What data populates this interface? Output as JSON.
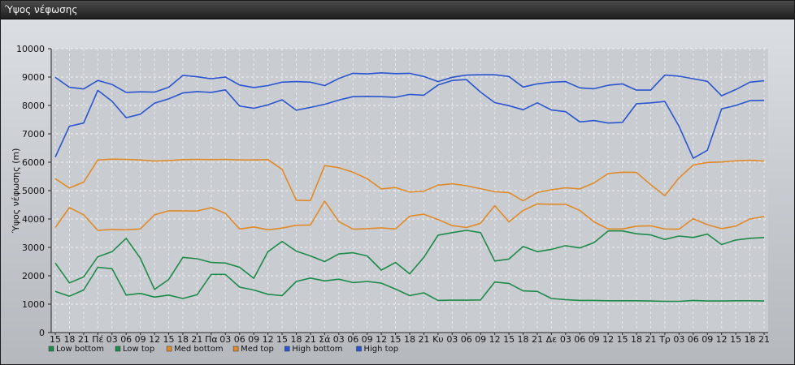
{
  "window": {
    "title": "Ύψος νέφωσης"
  },
  "chart_data": {
    "type": "line",
    "title": "",
    "ylabel": "Ύψος νέφωσης (m)",
    "xlabel": "",
    "ylim": [
      0,
      10000
    ],
    "yticks": [
      0,
      1000,
      2000,
      3000,
      4000,
      5000,
      6000,
      7000,
      8000,
      9000,
      10000
    ],
    "grid": true,
    "legend_position": "bottom-left",
    "categories": [
      "15",
      "18",
      "21",
      "Πέ",
      "03",
      "06",
      "09",
      "12",
      "15",
      "18",
      "21",
      "Πα",
      "03",
      "06",
      "09",
      "12",
      "15",
      "18",
      "21",
      "Σά",
      "03",
      "06",
      "09",
      "12",
      "15",
      "18",
      "21",
      "Κυ",
      "03",
      "06",
      "09",
      "12",
      "15",
      "18",
      "21",
      "Δε",
      "03",
      "06",
      "09",
      "12",
      "15",
      "18",
      "21",
      "Τρ",
      "03",
      "06",
      "09",
      "12",
      "15",
      "18",
      "21"
    ],
    "series": [
      {
        "name": "Low bottom",
        "color": "#1e8a4a",
        "values": [
          1450,
          1280,
          1500,
          2300,
          2250,
          1320,
          1380,
          1250,
          1320,
          1200,
          1330,
          2050,
          2050,
          1600,
          1500,
          1350,
          1300,
          1800,
          1920,
          1820,
          1880,
          1760,
          1800,
          1740,
          1530,
          1300,
          1400,
          1130,
          1140,
          1140,
          1150,
          1780,
          1730,
          1470,
          1450,
          1200,
          1160,
          1130,
          1130,
          1120,
          1120,
          1120,
          1110,
          1100,
          1100,
          1130,
          1110,
          1110,
          1120,
          1120,
          1110
        ]
      },
      {
        "name": "Low top",
        "color": "#1e8a4a",
        "values": [
          2450,
          1750,
          1960,
          2670,
          2850,
          3320,
          2620,
          1520,
          1870,
          2650,
          2600,
          2470,
          2450,
          2300,
          1910,
          2850,
          3210,
          2870,
          2700,
          2500,
          2770,
          2810,
          2700,
          2200,
          2470,
          2070,
          2650,
          3430,
          3520,
          3600,
          3520,
          2520,
          2590,
          3030,
          2850,
          2930,
          3060,
          2980,
          3170,
          3580,
          3580,
          3480,
          3440,
          3280,
          3400,
          3350,
          3470,
          3100,
          3260,
          3320,
          3350
        ]
      },
      {
        "name": "Med bottom",
        "color": "#e08a28",
        "values": [
          3700,
          4400,
          4150,
          3600,
          3630,
          3620,
          3650,
          4150,
          4290,
          4290,
          4280,
          4400,
          4200,
          3650,
          3720,
          3620,
          3680,
          3780,
          3790,
          4630,
          3910,
          3640,
          3660,
          3690,
          3650,
          4100,
          4170,
          3980,
          3770,
          3700,
          3850,
          4470,
          3900,
          4300,
          4530,
          4520,
          4520,
          4300,
          3900,
          3650,
          3650,
          3750,
          3760,
          3650,
          3640,
          4010,
          3800,
          3660,
          3750,
          4000,
          4090
        ]
      },
      {
        "name": "Med top",
        "color": "#e08a28",
        "values": [
          5420,
          5090,
          5300,
          6080,
          6110,
          6100,
          6080,
          6040,
          6060,
          6090,
          6100,
          6090,
          6100,
          6080,
          6080,
          6090,
          5750,
          4660,
          4650,
          5880,
          5810,
          5650,
          5420,
          5060,
          5110,
          4950,
          4980,
          5190,
          5240,
          5170,
          5070,
          4960,
          4930,
          4640,
          4930,
          5030,
          5100,
          5060,
          5270,
          5600,
          5650,
          5640,
          5210,
          4820,
          5450,
          5900,
          5990,
          6010,
          6050,
          6070,
          6040
        ]
      },
      {
        "name": "High bottom",
        "color": "#2a55cf",
        "values": [
          6180,
          7270,
          7380,
          8530,
          8150,
          7570,
          7690,
          8080,
          8230,
          8440,
          8490,
          8460,
          8550,
          7980,
          7900,
          8020,
          8200,
          7830,
          7930,
          8040,
          8190,
          8310,
          8320,
          8310,
          8290,
          8390,
          8360,
          8720,
          8880,
          8910,
          8470,
          8100,
          7990,
          7850,
          8090,
          7840,
          7780,
          7420,
          7470,
          7380,
          7400,
          8060,
          8090,
          8140,
          7260,
          6140,
          6420,
          7880,
          8000,
          8170,
          8180
        ]
      },
      {
        "name": "High top",
        "color": "#2a55cf",
        "values": [
          8990,
          8640,
          8580,
          8880,
          8740,
          8460,
          8480,
          8470,
          8640,
          9060,
          9010,
          8940,
          9000,
          8720,
          8630,
          8700,
          8820,
          8840,
          8820,
          8700,
          8950,
          9130,
          9110,
          9150,
          9120,
          9130,
          9020,
          8840,
          8990,
          9070,
          9080,
          9080,
          9020,
          8650,
          8760,
          8820,
          8840,
          8620,
          8590,
          8710,
          8760,
          8540,
          8540,
          9070,
          9030,
          8940,
          8850,
          8340,
          8560,
          8820,
          8870
        ]
      }
    ]
  }
}
